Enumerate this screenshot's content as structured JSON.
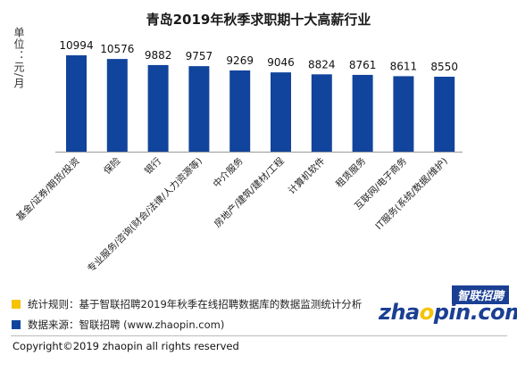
{
  "chart_data": {
    "type": "bar",
    "title": "青岛2019年秋季求职期十大高薪行业",
    "ylabel": "单位：元/月",
    "xlabel": "",
    "ylim": [
      0,
      12000
    ],
    "grid": false,
    "bar_color": "#11449c",
    "categories": [
      "基金/证券/期货/投资",
      "保险",
      "银行",
      "专业服务/咨询(财会/法律/人力资源等)",
      "中介服务",
      "房地产/建筑/建材/工程",
      "计算机软件",
      "租赁服务",
      "互联网/电子商务",
      "IT服务(系统/数据/维护)"
    ],
    "values": [
      10994,
      10576,
      9882,
      9757,
      9269,
      9046,
      8824,
      8761,
      8611,
      8550
    ]
  },
  "notes": {
    "rule_label": "统计规则：基于智联招聘2019年秋季在线招聘数据库的数据监测统计分析",
    "rule_color": "#f6c300",
    "source_label": "数据来源：智联招聘 (www.zhaopin.com)",
    "source_color": "#11449c"
  },
  "logo": {
    "cn": "智联招聘",
    "en": "zhaopin.com"
  },
  "copyright": "Copyright©2019 zhaopin all rights reserved"
}
